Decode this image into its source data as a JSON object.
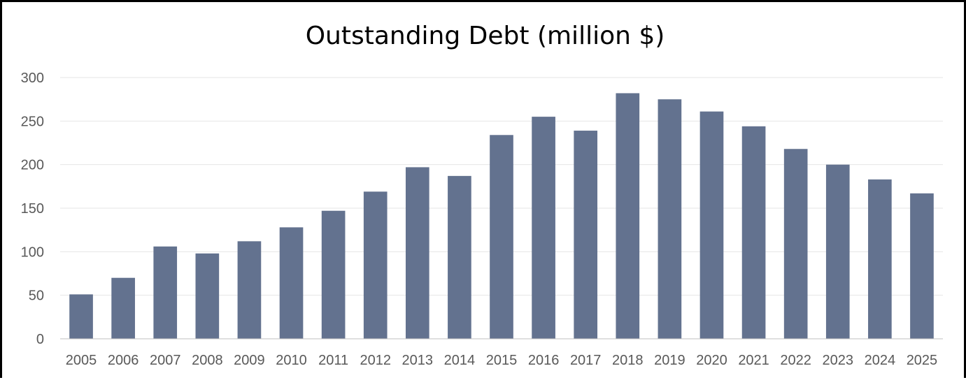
{
  "chart_data": {
    "type": "bar",
    "title": "Outstanding Debt (million $)",
    "xlabel": "",
    "ylabel": "",
    "categories": [
      "2005",
      "2006",
      "2007",
      "2008",
      "2009",
      "2010",
      "2011",
      "2012",
      "2013",
      "2014",
      "2015",
      "2016",
      "2017",
      "2018",
      "2019",
      "2020",
      "2021",
      "2022",
      "2023",
      "2024",
      "2025"
    ],
    "values": [
      51,
      70,
      106,
      98,
      112,
      128,
      147,
      169,
      197,
      187,
      234,
      255,
      239,
      282,
      275,
      261,
      244,
      218,
      200,
      183,
      167
    ],
    "ylim": [
      0,
      300
    ],
    "yticks": [
      "0",
      "50",
      "100",
      "150",
      "200",
      "250",
      "300"
    ],
    "grid": true,
    "legend": "none",
    "colors": {
      "bar": "#63728f",
      "grid": "#e6e6e6",
      "axis": "#bfbfbf"
    }
  }
}
